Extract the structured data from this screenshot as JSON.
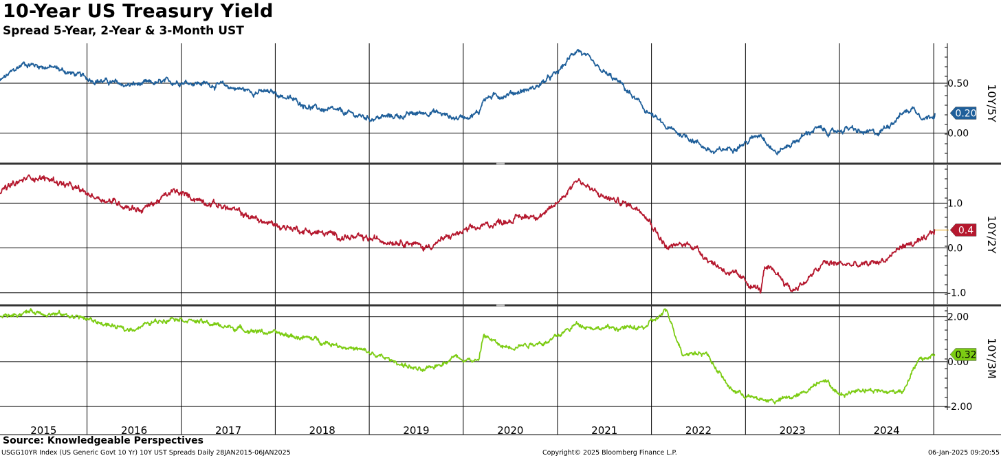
{
  "header": {
    "title": "10-Year US Treasury Yield",
    "subtitle": "Spread 5-Year, 2-Year & 3-Month UST"
  },
  "footer": {
    "source": "Source: Knowledgeable Perspectives",
    "left": "USGG10YR Index (US Generic Govt 10 Yr) 10Y UST Spreads  Daily 28JAN2015-06JAN2025",
    "center": "Copyright© 2025 Bloomberg Finance L.P.",
    "right": "06-Jan-2025 09:20:55"
  },
  "chart_data": [
    {
      "type": "line",
      "ylabel": "10Y/5Y",
      "x_ticks": [
        "2015",
        "2016",
        "2017",
        "2018",
        "2019",
        "2020",
        "2021",
        "2022",
        "2023",
        "2024"
      ],
      "y_ticks": [
        0.0,
        0.5
      ],
      "y_tick_labels": [
        "0.00",
        "0.50"
      ],
      "ylim": [
        -0.3,
        0.9
      ],
      "color": "#1f5f9a",
      "last_value_label": "0.20",
      "series": [
        {
          "x": [
            "2015-01-28",
            "2015-05-01",
            "2015-09-01",
            "2016-01-01",
            "2016-06-01",
            "2016-10-01",
            "2017-01-01",
            "2017-06-01",
            "2017-10-01",
            "2018-01-01",
            "2018-06-01",
            "2018-10-01",
            "2019-01-01",
            "2019-06-01",
            "2019-09-01",
            "2019-12-01",
            "2020-03-01",
            "2020-03-20",
            "2020-06-01",
            "2020-10-01",
            "2021-01-01",
            "2021-03-20",
            "2021-06-01",
            "2021-09-01",
            "2021-12-01",
            "2022-03-01",
            "2022-06-01",
            "2022-09-01",
            "2022-11-01",
            "2023-01-01",
            "2023-03-01",
            "2023-05-01",
            "2023-08-01",
            "2023-10-01",
            "2023-12-01",
            "2024-02-01",
            "2024-04-01",
            "2024-06-01",
            "2024-09-01",
            "2024-10-15",
            "2024-12-01",
            "2025-01-06"
          ],
          "values": [
            0.52,
            0.7,
            0.65,
            0.55,
            0.48,
            0.5,
            0.52,
            0.48,
            0.42,
            0.4,
            0.25,
            0.2,
            0.15,
            0.18,
            0.22,
            0.15,
            0.2,
            0.35,
            0.38,
            0.45,
            0.6,
            0.85,
            0.65,
            0.5,
            0.25,
            0.05,
            -0.05,
            -0.2,
            -0.15,
            -0.1,
            0.0,
            -0.2,
            -0.05,
            0.05,
            0.0,
            0.05,
            0.0,
            0.0,
            0.2,
            0.25,
            0.15,
            0.2
          ]
        }
      ]
    },
    {
      "type": "line",
      "ylabel": "10Y/2Y",
      "x_ticks": [
        "2015",
        "2016",
        "2017",
        "2018",
        "2019",
        "2020",
        "2021",
        "2022",
        "2023",
        "2024"
      ],
      "y_ticks": [
        -1.0,
        0.0,
        1.0
      ],
      "y_tick_labels": [
        "-1.0",
        "0.0",
        "1.0"
      ],
      "ylim": [
        -1.25,
        1.85
      ],
      "color": "#b5182e",
      "last_value_label": "0.4",
      "series": [
        {
          "x": [
            "2015-01-28",
            "2015-06-01",
            "2015-09-01",
            "2016-01-01",
            "2016-06-01",
            "2016-08-01",
            "2016-12-01",
            "2017-06-01",
            "2017-12-01",
            "2018-06-01",
            "2018-12-01",
            "2019-06-01",
            "2019-08-01",
            "2019-12-01",
            "2020-03-01",
            "2020-06-01",
            "2020-12-01",
            "2021-03-20",
            "2021-06-01",
            "2021-12-01",
            "2022-03-01",
            "2022-06-01",
            "2022-09-01",
            "2022-12-01",
            "2023-03-01",
            "2023-03-15",
            "2023-05-01",
            "2023-07-01",
            "2023-09-01",
            "2023-11-01",
            "2024-01-01",
            "2024-04-01",
            "2024-07-01",
            "2024-09-01",
            "2024-12-01",
            "2025-01-06"
          ],
          "values": [
            1.25,
            1.6,
            1.5,
            1.2,
            0.95,
            0.85,
            1.25,
            0.95,
            0.55,
            0.35,
            0.2,
            0.15,
            0.0,
            0.3,
            0.45,
            0.6,
            0.8,
            1.55,
            1.2,
            0.85,
            0.0,
            0.1,
            -0.35,
            -0.65,
            -0.95,
            -0.5,
            -0.55,
            -0.95,
            -0.7,
            -0.35,
            -0.35,
            -0.4,
            -0.25,
            0.05,
            0.15,
            0.4
          ]
        }
      ]
    },
    {
      "type": "line",
      "ylabel": "10Y/3M",
      "x_ticks": [
        "2015",
        "2016",
        "2017",
        "2018",
        "2019",
        "2020",
        "2021",
        "2022",
        "2023",
        "2024"
      ],
      "y_ticks": [
        -2.0,
        0.0,
        2.0
      ],
      "y_tick_labels": [
        "-2.00",
        "0.00",
        "2.00"
      ],
      "ylim": [
        -2.15,
        2.45
      ],
      "color": "#7ccc13",
      "last_value_label": "0.32",
      "series": [
        {
          "x": [
            "2015-01-28",
            "2015-06-01",
            "2015-12-01",
            "2016-06-01",
            "2016-12-01",
            "2017-06-01",
            "2017-12-01",
            "2018-06-01",
            "2018-12-01",
            "2019-06-01",
            "2019-08-01",
            "2019-12-01",
            "2020-03-01",
            "2020-03-20",
            "2020-06-01",
            "2020-12-01",
            "2021-03-20",
            "2021-06-01",
            "2021-12-01",
            "2022-03-01",
            "2022-05-01",
            "2022-08-01",
            "2022-11-01",
            "2023-02-01",
            "2023-05-01",
            "2023-08-01",
            "2023-11-01",
            "2024-01-01",
            "2024-04-01",
            "2024-07-01",
            "2024-09-01",
            "2024-11-01",
            "2025-01-06"
          ],
          "values": [
            2.0,
            2.25,
            2.0,
            1.4,
            2.0,
            1.6,
            1.3,
            1.0,
            0.5,
            -0.2,
            -0.45,
            0.25,
            0.0,
            1.2,
            0.65,
            0.9,
            1.7,
            1.5,
            1.5,
            2.25,
            0.4,
            0.4,
            -1.2,
            -1.65,
            -1.75,
            -1.5,
            -0.7,
            -1.5,
            -1.2,
            -1.35,
            -1.3,
            0.0,
            0.32
          ]
        }
      ]
    }
  ]
}
